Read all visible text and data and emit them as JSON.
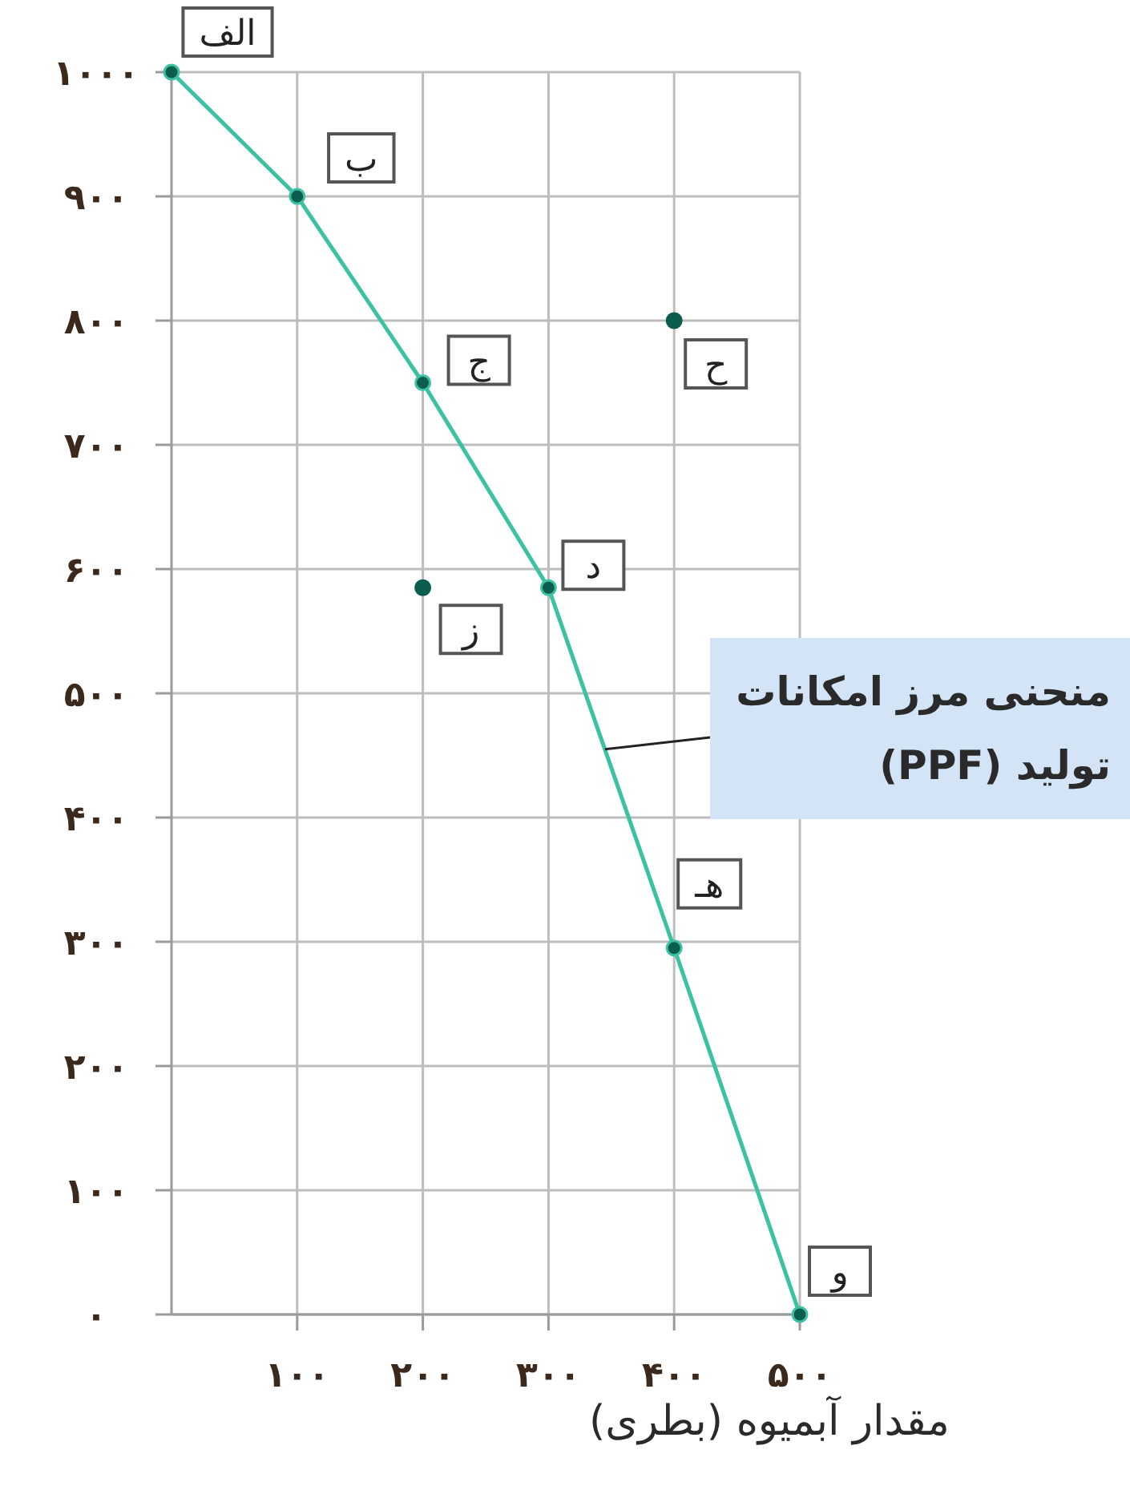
{
  "chart_data": {
    "type": "line",
    "xlabel": "مقدار آبمیوه (بطری)",
    "series": [
      {
        "type": "line",
        "color": "#3cc2a2",
        "x": [
          0,
          100,
          200,
          300,
          400,
          500
        ],
        "values": [
          1000,
          900,
          750,
          585,
          295,
          0
        ]
      },
      {
        "type": "scatter",
        "color": "#0b5e4e",
        "x": [
          400,
          200
        ],
        "values": [
          800,
          585
        ]
      }
    ],
    "xlim": [
      0,
      500
    ],
    "ylim": [
      0,
      1000
    ],
    "xticks": [
      {
        "value": 100,
        "label": "۱۰۰"
      },
      {
        "value": 200,
        "label": "۲۰۰"
      },
      {
        "value": 300,
        "label": "۳۰۰"
      },
      {
        "value": 400,
        "label": "۴۰۰"
      },
      {
        "value": 500,
        "label": "۵۰۰"
      }
    ],
    "yticks": [
      {
        "value": 0,
        "label": "۰"
      },
      {
        "value": 100,
        "label": "۱۰۰"
      },
      {
        "value": 200,
        "label": "۲۰۰"
      },
      {
        "value": 300,
        "label": "۳۰۰"
      },
      {
        "value": 400,
        "label": "۴۰۰"
      },
      {
        "value": 500,
        "label": "۵۰۰"
      },
      {
        "value": 600,
        "label": "۶۰۰"
      },
      {
        "value": 700,
        "label": "۷۰۰"
      },
      {
        "value": 800,
        "label": "۸۰۰"
      },
      {
        "value": 900,
        "label": "۹۰۰"
      },
      {
        "value": 1000,
        "label": "۱۰۰۰"
      }
    ],
    "grid": true,
    "marker": "circle",
    "line_style": "solid",
    "annotations": [
      {
        "text": "الف",
        "x": 0,
        "y": 1000
      },
      {
        "text": "ب",
        "x": 100,
        "y": 900
      },
      {
        "text": "ج",
        "x": 200,
        "y": 750
      },
      {
        "text": "ح",
        "x": 400,
        "y": 800
      },
      {
        "text": "د",
        "x": 300,
        "y": 585
      },
      {
        "text": "ز",
        "x": 200,
        "y": 585
      },
      {
        "text": "هـ",
        "x": 400,
        "y": 295
      },
      {
        "text": "و",
        "x": 500,
        "y": 0
      },
      {
        "text": "منحنی مرز امکانات تولید (PPF)",
        "x": 345,
        "y": 455
      }
    ]
  }
}
